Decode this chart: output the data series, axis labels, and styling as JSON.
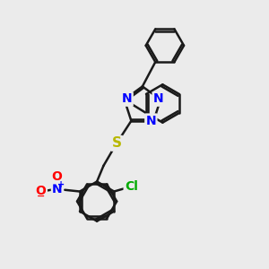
{
  "bg_color": "#ebebeb",
  "bond_color": "#1a1a1a",
  "N_color": "#0000ff",
  "S_color": "#b8b800",
  "O_color": "#ff0000",
  "Cl_color": "#00aa00",
  "line_width": 1.8,
  "font_size": 10,
  "fig_size": [
    3.0,
    3.0
  ],
  "dpi": 100,
  "xlim": [
    0,
    10
  ],
  "ylim": [
    0,
    10
  ]
}
